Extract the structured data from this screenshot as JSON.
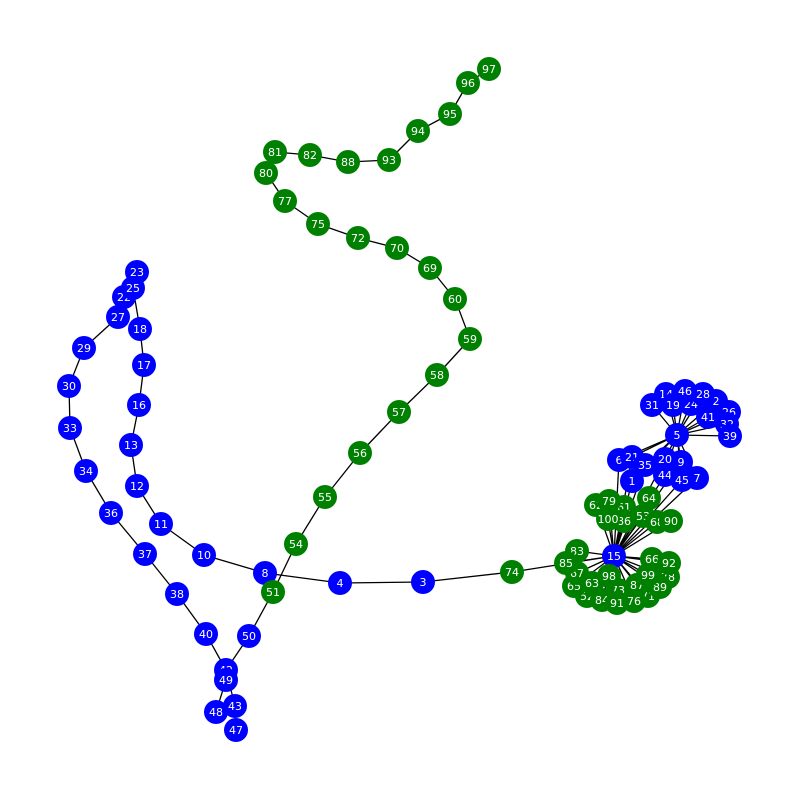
{
  "colors": {
    "blue": "#0000ff",
    "green": "#008000"
  },
  "nodes": [
    {
      "id": "1",
      "color": "blue"
    },
    {
      "id": "2",
      "color": "blue"
    },
    {
      "id": "3",
      "color": "blue"
    },
    {
      "id": "4",
      "color": "blue"
    },
    {
      "id": "5",
      "color": "blue"
    },
    {
      "id": "6",
      "color": "blue"
    },
    {
      "id": "7",
      "color": "blue"
    },
    {
      "id": "8",
      "color": "blue"
    },
    {
      "id": "9",
      "color": "blue"
    },
    {
      "id": "10",
      "color": "blue"
    },
    {
      "id": "11",
      "color": "blue"
    },
    {
      "id": "12",
      "color": "blue"
    },
    {
      "id": "13",
      "color": "blue"
    },
    {
      "id": "14",
      "color": "blue"
    },
    {
      "id": "15",
      "color": "blue"
    },
    {
      "id": "16",
      "color": "blue"
    },
    {
      "id": "17",
      "color": "blue"
    },
    {
      "id": "18",
      "color": "blue"
    },
    {
      "id": "19",
      "color": "blue"
    },
    {
      "id": "20",
      "color": "blue"
    },
    {
      "id": "21",
      "color": "blue"
    },
    {
      "id": "22",
      "color": "blue"
    },
    {
      "id": "23",
      "color": "blue"
    },
    {
      "id": "24",
      "color": "blue"
    },
    {
      "id": "25",
      "color": "blue"
    },
    {
      "id": "26",
      "color": "blue"
    },
    {
      "id": "27",
      "color": "blue"
    },
    {
      "id": "28",
      "color": "blue"
    },
    {
      "id": "29",
      "color": "blue"
    },
    {
      "id": "30",
      "color": "blue"
    },
    {
      "id": "31",
      "color": "blue"
    },
    {
      "id": "32",
      "color": "blue"
    },
    {
      "id": "33",
      "color": "blue"
    },
    {
      "id": "34",
      "color": "blue"
    },
    {
      "id": "35",
      "color": "blue"
    },
    {
      "id": "36",
      "color": "blue"
    },
    {
      "id": "37",
      "color": "blue"
    },
    {
      "id": "38",
      "color": "blue"
    },
    {
      "id": "39",
      "color": "blue"
    },
    {
      "id": "40",
      "color": "blue"
    },
    {
      "id": "41",
      "color": "blue"
    },
    {
      "id": "42",
      "color": "blue"
    },
    {
      "id": "43",
      "color": "blue"
    },
    {
      "id": "44",
      "color": "blue"
    },
    {
      "id": "45",
      "color": "blue"
    },
    {
      "id": "46",
      "color": "blue"
    },
    {
      "id": "47",
      "color": "blue"
    },
    {
      "id": "48",
      "color": "blue"
    },
    {
      "id": "49",
      "color": "blue"
    },
    {
      "id": "50",
      "color": "blue"
    },
    {
      "id": "51",
      "color": "green"
    },
    {
      "id": "52",
      "color": "green"
    },
    {
      "id": "53",
      "color": "green"
    },
    {
      "id": "54",
      "color": "green"
    },
    {
      "id": "55",
      "color": "green"
    },
    {
      "id": "56",
      "color": "green"
    },
    {
      "id": "57",
      "color": "green"
    },
    {
      "id": "58",
      "color": "green"
    },
    {
      "id": "59",
      "color": "green"
    },
    {
      "id": "60",
      "color": "green"
    },
    {
      "id": "61",
      "color": "green"
    },
    {
      "id": "62",
      "color": "green"
    },
    {
      "id": "63",
      "color": "green"
    },
    {
      "id": "64",
      "color": "green"
    },
    {
      "id": "65",
      "color": "green"
    },
    {
      "id": "66",
      "color": "green"
    },
    {
      "id": "67",
      "color": "green"
    },
    {
      "id": "68",
      "color": "green"
    },
    {
      "id": "69",
      "color": "green"
    },
    {
      "id": "70",
      "color": "green"
    },
    {
      "id": "71",
      "color": "green"
    },
    {
      "id": "72",
      "color": "green"
    },
    {
      "id": "73",
      "color": "green"
    },
    {
      "id": "74",
      "color": "green"
    },
    {
      "id": "75",
      "color": "green"
    },
    {
      "id": "76",
      "color": "green"
    },
    {
      "id": "77",
      "color": "green"
    },
    {
      "id": "78",
      "color": "green"
    },
    {
      "id": "79",
      "color": "green"
    },
    {
      "id": "80",
      "color": "green"
    },
    {
      "id": "81",
      "color": "green"
    },
    {
      "id": "82",
      "color": "green"
    },
    {
      "id": "83",
      "color": "green"
    },
    {
      "id": "84",
      "color": "green"
    },
    {
      "id": "85",
      "color": "green"
    },
    {
      "id": "86",
      "color": "green"
    },
    {
      "id": "87",
      "color": "green"
    },
    {
      "id": "88",
      "color": "green"
    },
    {
      "id": "89",
      "color": "green"
    },
    {
      "id": "90",
      "color": "green"
    },
    {
      "id": "91",
      "color": "green"
    },
    {
      "id": "92",
      "color": "green"
    },
    {
      "id": "93",
      "color": "green"
    },
    {
      "id": "94",
      "color": "green"
    },
    {
      "id": "95",
      "color": "green"
    },
    {
      "id": "96",
      "color": "green"
    },
    {
      "id": "97",
      "color": "green"
    },
    {
      "id": "98",
      "color": "green"
    },
    {
      "id": "99",
      "color": "green"
    },
    {
      "id": "100",
      "color": "green"
    }
  ],
  "edges": [
    [
      "23",
      "25"
    ],
    [
      "25",
      "22"
    ],
    [
      "22",
      "27"
    ],
    [
      "25",
      "18"
    ],
    [
      "27",
      "29"
    ],
    [
      "29",
      "30"
    ],
    [
      "30",
      "33"
    ],
    [
      "33",
      "34"
    ],
    [
      "34",
      "36"
    ],
    [
      "36",
      "37"
    ],
    [
      "37",
      "38"
    ],
    [
      "38",
      "40"
    ],
    [
      "40",
      "42"
    ],
    [
      "42",
      "49"
    ],
    [
      "49",
      "48"
    ],
    [
      "42",
      "43"
    ],
    [
      "43",
      "47"
    ],
    [
      "42",
      "50"
    ],
    [
      "50",
      "51"
    ],
    [
      "18",
      "17"
    ],
    [
      "17",
      "16"
    ],
    [
      "16",
      "13"
    ],
    [
      "13",
      "12"
    ],
    [
      "12",
      "11"
    ],
    [
      "11",
      "10"
    ],
    [
      "10",
      "8"
    ],
    [
      "8",
      "51"
    ],
    [
      "8",
      "4"
    ],
    [
      "4",
      "3"
    ],
    [
      "3",
      "74"
    ],
    [
      "74",
      "15"
    ],
    [
      "51",
      "54"
    ],
    [
      "54",
      "55"
    ],
    [
      "55",
      "56"
    ],
    [
      "56",
      "57"
    ],
    [
      "57",
      "58"
    ],
    [
      "58",
      "59"
    ],
    [
      "59",
      "60"
    ],
    [
      "60",
      "69"
    ],
    [
      "69",
      "70"
    ],
    [
      "70",
      "72"
    ],
    [
      "72",
      "75"
    ],
    [
      "75",
      "77"
    ],
    [
      "77",
      "80"
    ],
    [
      "80",
      "81"
    ],
    [
      "81",
      "82"
    ],
    [
      "82",
      "88"
    ],
    [
      "88",
      "93"
    ],
    [
      "93",
      "94"
    ],
    [
      "94",
      "95"
    ],
    [
      "95",
      "96"
    ],
    [
      "96",
      "97"
    ],
    [
      "5",
      "31"
    ],
    [
      "5",
      "14"
    ],
    [
      "5",
      "19"
    ],
    [
      "5",
      "46"
    ],
    [
      "5",
      "28"
    ],
    [
      "5",
      "24"
    ],
    [
      "5",
      "2"
    ],
    [
      "5",
      "41"
    ],
    [
      "5",
      "26"
    ],
    [
      "5",
      "32"
    ],
    [
      "5",
      "39"
    ],
    [
      "5",
      "6"
    ],
    [
      "5",
      "21"
    ],
    [
      "5",
      "35"
    ],
    [
      "5",
      "20"
    ],
    [
      "5",
      "9"
    ],
    [
      "5",
      "44"
    ],
    [
      "5",
      "45"
    ],
    [
      "5",
      "7"
    ],
    [
      "5",
      "1"
    ],
    [
      "15",
      "6"
    ],
    [
      "15",
      "21"
    ],
    [
      "15",
      "35"
    ],
    [
      "15",
      "20"
    ],
    [
      "15",
      "9"
    ],
    [
      "15",
      "44"
    ],
    [
      "15",
      "45"
    ],
    [
      "15",
      "7"
    ],
    [
      "15",
      "1"
    ],
    [
      "15",
      "62"
    ],
    [
      "15",
      "79"
    ],
    [
      "15",
      "61"
    ],
    [
      "15",
      "100"
    ],
    [
      "15",
      "86"
    ],
    [
      "15",
      "64"
    ],
    [
      "15",
      "53"
    ],
    [
      "15",
      "68"
    ],
    [
      "15",
      "90"
    ],
    [
      "15",
      "83"
    ],
    [
      "15",
      "85"
    ],
    [
      "15",
      "67"
    ],
    [
      "15",
      "65"
    ],
    [
      "15",
      "52"
    ],
    [
      "15",
      "63"
    ],
    [
      "15",
      "84"
    ],
    [
      "15",
      "98"
    ],
    [
      "15",
      "91"
    ],
    [
      "15",
      "73"
    ],
    [
      "15",
      "76"
    ],
    [
      "15",
      "87"
    ],
    [
      "15",
      "71"
    ],
    [
      "15",
      "99"
    ],
    [
      "15",
      "89"
    ],
    [
      "15",
      "66"
    ],
    [
      "15",
      "92"
    ],
    [
      "15",
      "78"
    ]
  ]
}
